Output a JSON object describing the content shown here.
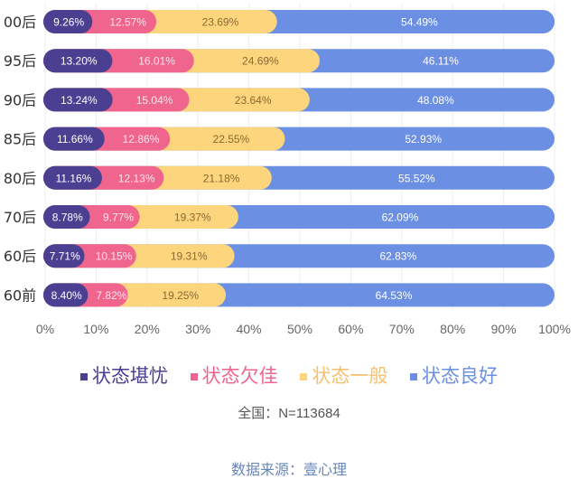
{
  "chart_data": {
    "type": "bar",
    "orientation": "horizontal",
    "stacked": true,
    "categories": [
      "00后",
      "95后",
      "90后",
      "85后",
      "80后",
      "70后",
      "60后",
      "60前"
    ],
    "series": [
      {
        "name": "状态堪忧",
        "color": "#4b3f91",
        "text_color": "#ffffff",
        "values": [
          9.26,
          13.2,
          13.24,
          11.66,
          11.16,
          8.78,
          7.71,
          8.4
        ],
        "labels": [
          "9.26%",
          "13.20%",
          "13.24%",
          "11.66%",
          "11.16%",
          "8.78%",
          "7.71%",
          "8.40%"
        ]
      },
      {
        "name": "状态欠佳",
        "color": "#f0658e",
        "text_color": "#ffe3ec",
        "values": [
          12.57,
          16.01,
          15.04,
          12.86,
          12.13,
          9.77,
          10.15,
          7.82
        ],
        "labels": [
          "12.57%",
          "16.01%",
          "15.04%",
          "12.86%",
          "12.13%",
          "9.77%",
          "10.15%",
          "7.82%"
        ]
      },
      {
        "name": "状态一般",
        "color": "#fcd57c",
        "text_color": "#8a6a34",
        "values": [
          23.69,
          24.69,
          23.64,
          22.55,
          21.18,
          19.37,
          19.31,
          19.25
        ],
        "labels": [
          "23.69%",
          "24.69%",
          "23.64%",
          "22.55%",
          "21.18%",
          "19.37%",
          "19.31%",
          "19.25%"
        ]
      },
      {
        "name": "状态良好",
        "color": "#6b8fe2",
        "text_color": "#ffffff",
        "values": [
          54.49,
          46.11,
          48.08,
          52.93,
          55.52,
          62.09,
          62.83,
          64.53
        ],
        "labels": [
          "54.49%",
          "46.11%",
          "48.08%",
          "52.93%",
          "55.52%",
          "62.09%",
          "62.83%",
          "64.53%"
        ]
      }
    ],
    "xlim": [
      0,
      100
    ],
    "x_ticks": [
      "0%",
      "10%",
      "20%",
      "30%",
      "40%",
      "50%",
      "60%",
      "70%",
      "80%",
      "90%",
      "100%"
    ],
    "grid": "vertical",
    "legend_position": "bottom"
  },
  "note": "全国：N=113684",
  "source": "数据来源：壹心理"
}
